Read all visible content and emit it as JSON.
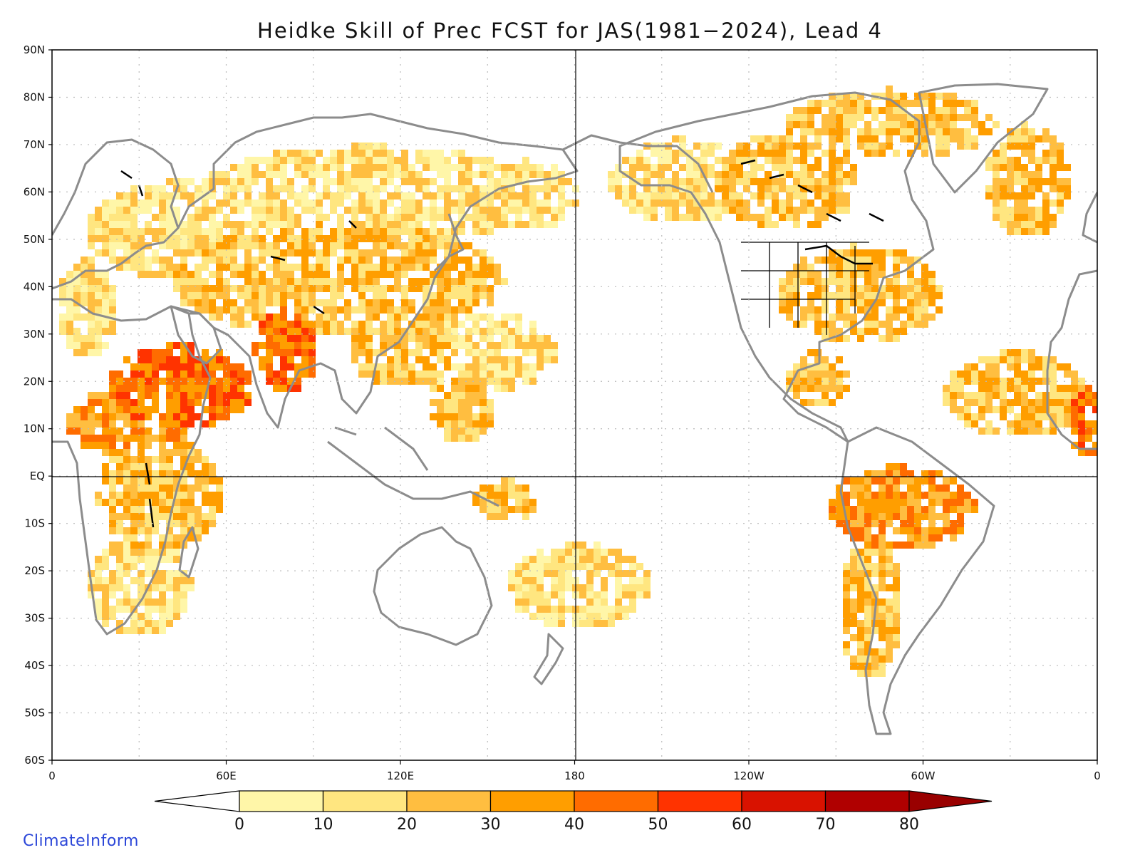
{
  "title": "Heidke Skill of Prec FCST for JAS(1981−2024), Lead 4",
  "credit": "ClimateInform",
  "lat_labels": [
    "90N",
    "80N",
    "70N",
    "60N",
    "50N",
    "40N",
    "30N",
    "20N",
    "10N",
    "EQ",
    "10S",
    "20S",
    "30S",
    "40S",
    "50S",
    "60S"
  ],
  "lon_labels": [
    "0",
    "60E",
    "120E",
    "180",
    "120W",
    "60W",
    "0"
  ],
  "colorbar": {
    "ticks": [
      "0",
      "10",
      "20",
      "30",
      "40",
      "50",
      "60",
      "70",
      "80"
    ],
    "colors": [
      "#fff6a8",
      "#ffe680",
      "#ffbe40",
      "#ff9e00",
      "#ff6c00",
      "#ff3300",
      "#d91200",
      "#b00000"
    ],
    "under_color": "#ffffff",
    "over_color": "#990000"
  },
  "colors": {
    "coastline": "#8c8c8c",
    "lakes": "#000000",
    "grid_major": "#000000",
    "grid_minor": "#bbbbbb"
  }
}
